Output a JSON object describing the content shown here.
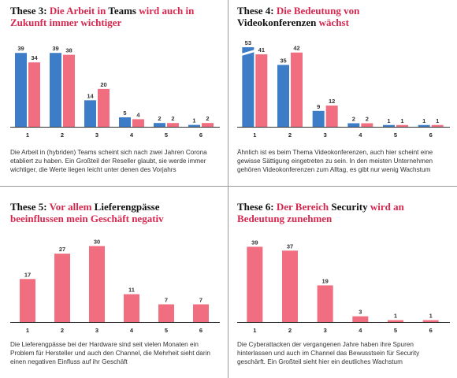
{
  "colors": {
    "blue": "#3d7cc6",
    "pink": "#f06e80",
    "accent": "#d6274f"
  },
  "panels": [
    {
      "title": [
        {
          "t": "These 3: ",
          "hl": false
        },
        {
          "t": "Die Arbeit in ",
          "hl": true
        },
        {
          "t": "Teams ",
          "hl": false
        },
        {
          "t": "wird auch in Zukunft immer wichtiger",
          "hl": true
        }
      ],
      "description": "Die Arbeit in (hybriden) Teams scheint sich nach zwei Jahren Corona etabliert zu haben. Ein Großteil der Reseller glaubt, sie werde immer wichtiger, die Werte liegen leicht unter denen des Vorjahrs"
    },
    {
      "title": [
        {
          "t": "These 4: ",
          "hl": false
        },
        {
          "t": "Die Bedeutung von ",
          "hl": true
        },
        {
          "t": "Videokonferenzen ",
          "hl": false
        },
        {
          "t": "wächst",
          "hl": true
        }
      ],
      "description": "Ähnlich ist es beim Thema Videokonferenzen, auch hier scheint eine gewisse Sättigung eingetreten zu sein. In den meisten Unternehmen gehören Videokonferenzen zum Alltag, es gibt nur wenig Wachstum"
    },
    {
      "title": [
        {
          "t": "These 5: ",
          "hl": false
        },
        {
          "t": "Vor allem ",
          "hl": true
        },
        {
          "t": "Lieferengpässe ",
          "hl": false
        },
        {
          "t": "beeinflussen mein Geschäft negativ",
          "hl": true
        }
      ],
      "description": "Die Lieferengpässe bei der Hardware sind seit vielen Monaten ein Problem für Hersteller und auch den Channel, die Mehrheit sieht darin einen negativen Einfluss auf ihr Geschäft"
    },
    {
      "title": [
        {
          "t": "These 6: ",
          "hl": false
        },
        {
          "t": "Der Bereich ",
          "hl": true
        },
        {
          "t": "Security ",
          "hl": false
        },
        {
          "t": "wird an Bedeutung zunehmen",
          "hl": true
        }
      ],
      "description": "Die Cyberattacken der vergangenen Jahre haben ihre Spuren hinterlassen und auch im Channel das Bewusstsein für Security geschärft. Ein Großteil sieht hier ein deutliches Wachstum"
    }
  ],
  "chart_data": [
    {
      "type": "bar",
      "categories": [
        "1",
        "2",
        "3",
        "4",
        "5",
        "6"
      ],
      "series": [
        {
          "values": [
            39,
            39,
            14,
            5,
            2,
            1
          ],
          "color": "#3d7cc6"
        },
        {
          "values": [
            34,
            38,
            20,
            4,
            2,
            2
          ],
          "color": "#f06e80"
        }
      ],
      "ylim": [
        0,
        42
      ]
    },
    {
      "type": "bar",
      "categories": [
        "1",
        "2",
        "3",
        "4",
        "5",
        "6"
      ],
      "series": [
        {
          "values": [
            53,
            35,
            9,
            2,
            1,
            1
          ],
          "color": "#3d7cc6"
        },
        {
          "values": [
            41,
            42,
            12,
            2,
            1,
            1
          ],
          "color": "#f06e80"
        }
      ],
      "ylim": [
        0,
        45
      ],
      "axis_break": true
    },
    {
      "type": "bar",
      "categories": [
        "1",
        "2",
        "3",
        "4",
        "5",
        "6"
      ],
      "series": [
        {
          "values": [
            17,
            27,
            30,
            11,
            7,
            7
          ],
          "color": "#f06e80"
        }
      ],
      "ylim": [
        0,
        32
      ]
    },
    {
      "type": "bar",
      "categories": [
        "1",
        "2",
        "3",
        "4",
        "5",
        "6"
      ],
      "series": [
        {
          "values": [
            39,
            37,
            19,
            3,
            1,
            1
          ],
          "color": "#f06e80"
        }
      ],
      "ylim": [
        0,
        42
      ]
    }
  ]
}
